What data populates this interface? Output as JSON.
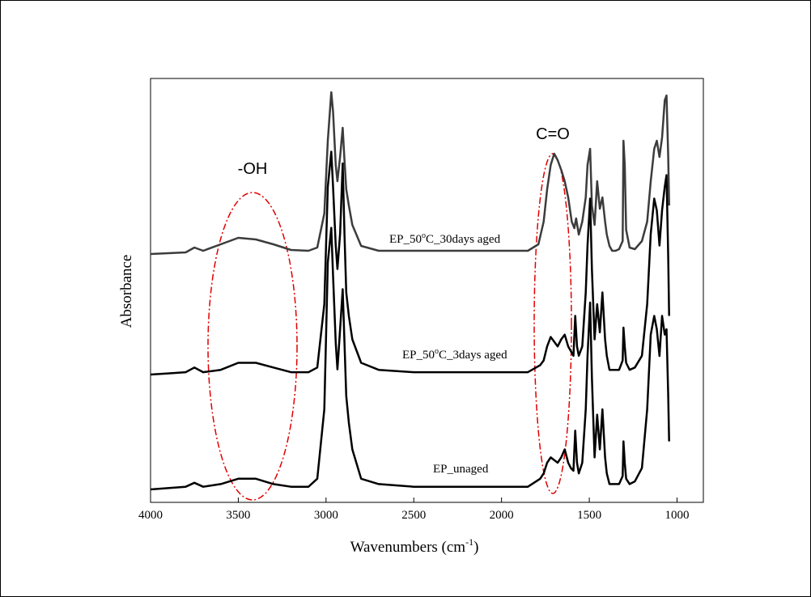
{
  "chart_data": {
    "type": "line",
    "xlabel": "Wavenumbers (cm",
    "xlabel_sup": "-1",
    "xlabel_suffix": ")",
    "ylabel": "Absorbance",
    "xlim": [
      4000,
      850
    ],
    "x_reversed": true,
    "x_ticks": [
      4000,
      3500,
      3000,
      2500,
      2000,
      1500,
      1000
    ],
    "y_ticks_shown": false,
    "grid": false,
    "legend": "none",
    "annotations": [
      {
        "text": "-OH",
        "x_center": 3480
      },
      {
        "text": "C=O",
        "x_center": 1680
      }
    ],
    "series": [
      {
        "name": "EP_50°C_30days aged",
        "color": "#3c3c3c",
        "x": [
          4000,
          3900,
          3800,
          3750,
          3700,
          3600,
          3500,
          3400,
          3300,
          3200,
          3100,
          3050,
          3010,
          2990,
          2970,
          2960,
          2945,
          2935,
          2920,
          2905,
          2895,
          2885,
          2870,
          2850,
          2800,
          2700,
          2500,
          2300,
          2000,
          1850,
          1790,
          1760,
          1740,
          1720,
          1700,
          1680,
          1660,
          1640,
          1620,
          1600,
          1585,
          1575,
          1560,
          1540,
          1520,
          1510,
          1495,
          1485,
          1470,
          1455,
          1440,
          1425,
          1410,
          1400,
          1385,
          1370,
          1350,
          1330,
          1310,
          1305,
          1298,
          1290,
          1270,
          1240,
          1200,
          1170,
          1150,
          1130,
          1115,
          1100,
          1085,
          1070,
          1060,
          1050,
          1045
        ],
        "y": [
          0.0,
          0.005,
          0.01,
          0.04,
          0.02,
          0.06,
          0.1,
          0.09,
          0.06,
          0.025,
          0.02,
          0.04,
          0.25,
          0.7,
          1.0,
          0.88,
          0.55,
          0.45,
          0.6,
          0.78,
          0.58,
          0.4,
          0.3,
          0.18,
          0.05,
          0.02,
          0.02,
          0.02,
          0.02,
          0.02,
          0.06,
          0.2,
          0.4,
          0.55,
          0.62,
          0.58,
          0.52,
          0.45,
          0.35,
          0.2,
          0.16,
          0.22,
          0.12,
          0.2,
          0.35,
          0.55,
          0.65,
          0.3,
          0.18,
          0.45,
          0.28,
          0.35,
          0.2,
          0.12,
          0.05,
          0.02,
          0.02,
          0.03,
          0.08,
          0.7,
          0.55,
          0.15,
          0.04,
          0.03,
          0.08,
          0.2,
          0.45,
          0.65,
          0.7,
          0.6,
          0.72,
          0.95,
          0.98,
          0.6,
          0.3
        ]
      },
      {
        "name": "EP_50°C_3days aged",
        "color": "#000000",
        "x": [
          4000,
          3900,
          3800,
          3750,
          3700,
          3600,
          3500,
          3400,
          3300,
          3200,
          3100,
          3050,
          3010,
          2990,
          2970,
          2960,
          2945,
          2935,
          2920,
          2905,
          2895,
          2885,
          2870,
          2850,
          2800,
          2700,
          2500,
          2300,
          2000,
          1850,
          1780,
          1760,
          1740,
          1720,
          1700,
          1680,
          1660,
          1640,
          1620,
          1605,
          1590,
          1580,
          1570,
          1560,
          1540,
          1520,
          1510,
          1495,
          1485,
          1470,
          1455,
          1440,
          1425,
          1410,
          1400,
          1385,
          1370,
          1350,
          1330,
          1310,
          1305,
          1298,
          1290,
          1270,
          1240,
          1200,
          1170,
          1150,
          1130,
          1115,
          1100,
          1085,
          1070,
          1060,
          1050,
          1045
        ],
        "y": [
          0.0,
          0.005,
          0.01,
          0.03,
          0.01,
          0.02,
          0.05,
          0.05,
          0.03,
          0.01,
          0.01,
          0.03,
          0.3,
          0.8,
          0.95,
          0.8,
          0.55,
          0.45,
          0.6,
          0.9,
          0.6,
          0.35,
          0.25,
          0.15,
          0.05,
          0.02,
          0.01,
          0.01,
          0.01,
          0.01,
          0.04,
          0.06,
          0.12,
          0.16,
          0.14,
          0.12,
          0.15,
          0.17,
          0.12,
          0.1,
          0.08,
          0.25,
          0.12,
          0.08,
          0.12,
          0.35,
          0.55,
          0.75,
          0.45,
          0.15,
          0.3,
          0.18,
          0.35,
          0.15,
          0.08,
          0.02,
          0.02,
          0.02,
          0.02,
          0.06,
          0.2,
          0.12,
          0.05,
          0.02,
          0.03,
          0.08,
          0.3,
          0.6,
          0.75,
          0.7,
          0.55,
          0.7,
          0.8,
          0.85,
          0.5,
          0.25
        ]
      },
      {
        "name": "EP_unaged",
        "color": "#000000",
        "x": [
          4000,
          3900,
          3800,
          3750,
          3700,
          3600,
          3500,
          3400,
          3300,
          3200,
          3100,
          3050,
          3010,
          2990,
          2970,
          2960,
          2945,
          2935,
          2920,
          2905,
          2895,
          2885,
          2870,
          2850,
          2800,
          2700,
          2500,
          2300,
          2000,
          1850,
          1780,
          1760,
          1740,
          1720,
          1700,
          1680,
          1660,
          1640,
          1620,
          1605,
          1590,
          1580,
          1570,
          1560,
          1540,
          1520,
          1510,
          1495,
          1485,
          1470,
          1455,
          1440,
          1425,
          1410,
          1400,
          1385,
          1370,
          1350,
          1330,
          1310,
          1305,
          1298,
          1290,
          1270,
          1240,
          1200,
          1170,
          1150,
          1130,
          1115,
          1100,
          1085,
          1070,
          1060,
          1050,
          1045
        ],
        "y": [
          0.0,
          0.005,
          0.01,
          0.025,
          0.01,
          0.02,
          0.04,
          0.04,
          0.02,
          0.01,
          0.01,
          0.04,
          0.3,
          0.85,
          0.98,
          0.8,
          0.55,
          0.45,
          0.6,
          0.75,
          0.55,
          0.35,
          0.25,
          0.15,
          0.04,
          0.02,
          0.01,
          0.01,
          0.01,
          0.01,
          0.04,
          0.06,
          0.1,
          0.12,
          0.11,
          0.1,
          0.12,
          0.15,
          0.1,
          0.08,
          0.07,
          0.22,
          0.1,
          0.06,
          0.1,
          0.3,
          0.5,
          0.7,
          0.42,
          0.12,
          0.28,
          0.15,
          0.3,
          0.12,
          0.06,
          0.02,
          0.02,
          0.02,
          0.02,
          0.05,
          0.18,
          0.1,
          0.04,
          0.02,
          0.03,
          0.08,
          0.3,
          0.58,
          0.65,
          0.6,
          0.5,
          0.65,
          0.58,
          0.6,
          0.35,
          0.18
        ]
      }
    ]
  }
}
